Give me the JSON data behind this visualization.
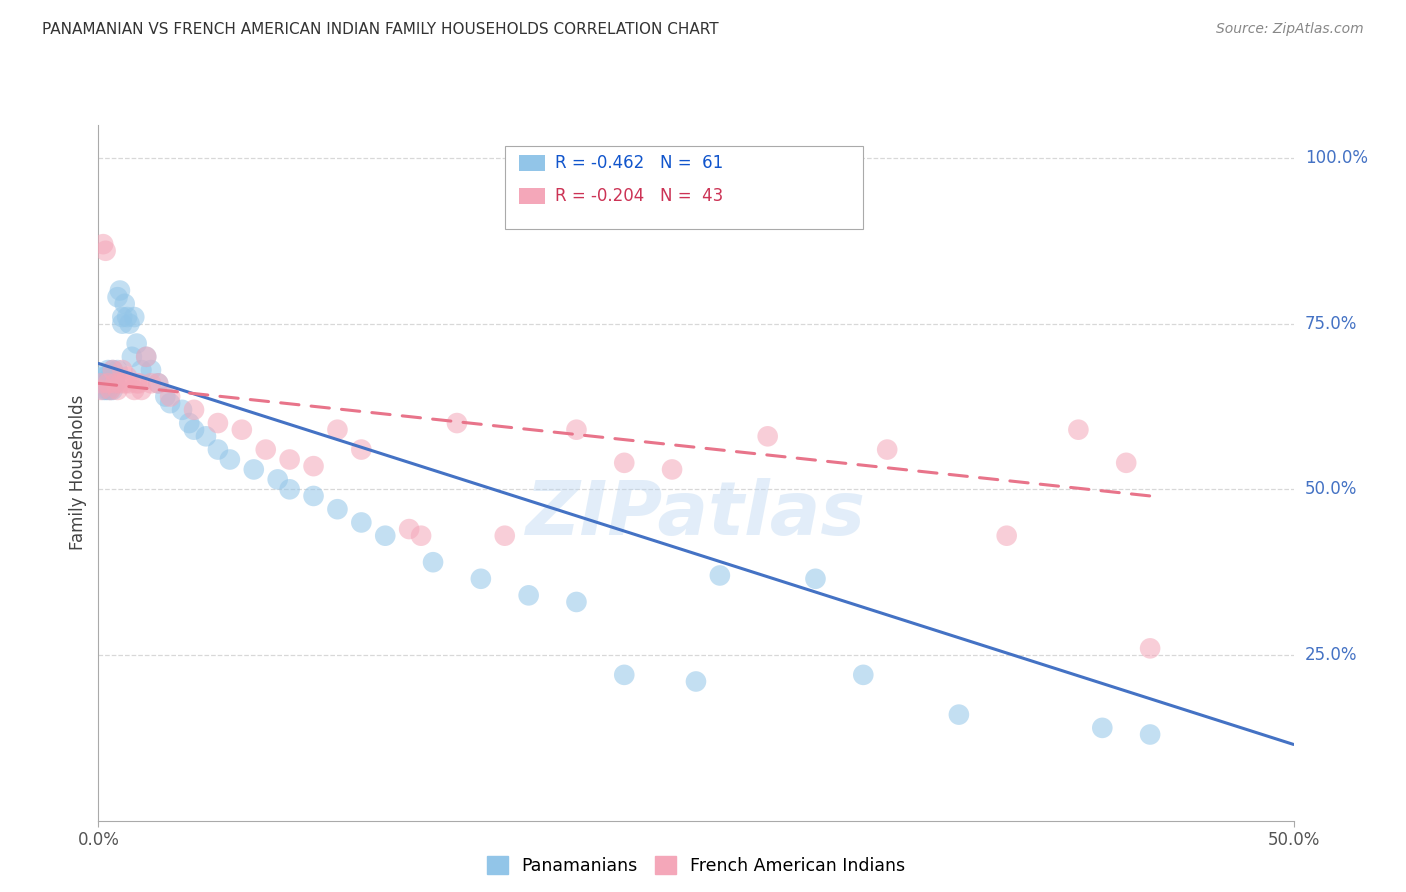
{
  "title": "PANAMANIAN VS FRENCH AMERICAN INDIAN FAMILY HOUSEHOLDS CORRELATION CHART",
  "source": "Source: ZipAtlas.com",
  "ylabel": "Family Households",
  "ytick_labels": [
    "100.0%",
    "75.0%",
    "50.0%",
    "25.0%"
  ],
  "ytick_values": [
    1.0,
    0.75,
    0.5,
    0.25
  ],
  "xlim": [
    0.0,
    0.5
  ],
  "ylim": [
    0.0,
    1.05
  ],
  "legend_blue_r": "-0.462",
  "legend_blue_n": "61",
  "legend_pink_r": "-0.204",
  "legend_pink_n": "43",
  "blue_color": "#92C5E8",
  "pink_color": "#F4A7B9",
  "line_blue": "#4472C4",
  "line_pink": "#E8748A",
  "watermark": "ZIPatlas",
  "blue_points_x": [
    0.001,
    0.001,
    0.002,
    0.002,
    0.002,
    0.003,
    0.003,
    0.003,
    0.004,
    0.004,
    0.004,
    0.005,
    0.005,
    0.005,
    0.006,
    0.006,
    0.006,
    0.007,
    0.007,
    0.008,
    0.008,
    0.009,
    0.01,
    0.01,
    0.011,
    0.012,
    0.013,
    0.014,
    0.015,
    0.016,
    0.018,
    0.02,
    0.022,
    0.025,
    0.028,
    0.03,
    0.035,
    0.038,
    0.04,
    0.045,
    0.05,
    0.055,
    0.065,
    0.075,
    0.08,
    0.09,
    0.1,
    0.11,
    0.12,
    0.14,
    0.16,
    0.18,
    0.2,
    0.22,
    0.25,
    0.26,
    0.3,
    0.32,
    0.36,
    0.42,
    0.44
  ],
  "blue_points_y": [
    0.66,
    0.66,
    0.67,
    0.66,
    0.65,
    0.66,
    0.67,
    0.65,
    0.68,
    0.66,
    0.65,
    0.66,
    0.67,
    0.65,
    0.68,
    0.66,
    0.65,
    0.67,
    0.66,
    0.68,
    0.79,
    0.8,
    0.76,
    0.75,
    0.78,
    0.76,
    0.75,
    0.7,
    0.76,
    0.72,
    0.68,
    0.7,
    0.68,
    0.66,
    0.64,
    0.63,
    0.62,
    0.6,
    0.59,
    0.58,
    0.56,
    0.545,
    0.53,
    0.515,
    0.5,
    0.49,
    0.47,
    0.45,
    0.43,
    0.39,
    0.365,
    0.34,
    0.33,
    0.22,
    0.21,
    0.37,
    0.365,
    0.22,
    0.16,
    0.14,
    0.13
  ],
  "pink_points_x": [
    0.001,
    0.001,
    0.002,
    0.003,
    0.004,
    0.005,
    0.006,
    0.007,
    0.008,
    0.009,
    0.01,
    0.011,
    0.012,
    0.013,
    0.015,
    0.016,
    0.017,
    0.018,
    0.02,
    0.022,
    0.025,
    0.03,
    0.04,
    0.05,
    0.06,
    0.07,
    0.08,
    0.09,
    0.1,
    0.11,
    0.13,
    0.135,
    0.15,
    0.17,
    0.2,
    0.22,
    0.24,
    0.28,
    0.33,
    0.38,
    0.41,
    0.43,
    0.44
  ],
  "pink_points_y": [
    0.66,
    0.65,
    0.87,
    0.86,
    0.66,
    0.65,
    0.68,
    0.66,
    0.65,
    0.66,
    0.68,
    0.66,
    0.67,
    0.66,
    0.65,
    0.66,
    0.66,
    0.65,
    0.7,
    0.66,
    0.66,
    0.64,
    0.62,
    0.6,
    0.59,
    0.56,
    0.545,
    0.535,
    0.59,
    0.56,
    0.44,
    0.43,
    0.6,
    0.43,
    0.59,
    0.54,
    0.53,
    0.58,
    0.56,
    0.43,
    0.59,
    0.54,
    0.26
  ],
  "blue_line_x": [
    0.0,
    0.5
  ],
  "blue_line_y": [
    0.69,
    0.115
  ],
  "pink_line_x": [
    0.0,
    0.44
  ],
  "pink_line_y": [
    0.66,
    0.49
  ]
}
